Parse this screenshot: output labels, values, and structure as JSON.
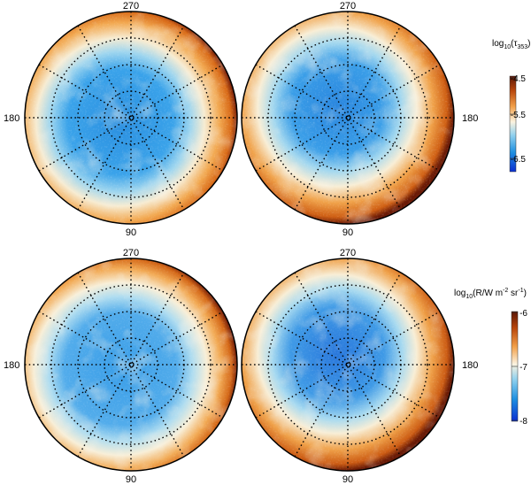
{
  "figure": {
    "top_row": {
      "left_map": {
        "top_label": "270",
        "left_label": "180",
        "bottom_label": "90"
      },
      "right_map": {
        "top_label": "270",
        "right_label": "180",
        "bottom_label": "90"
      },
      "colorbar": {
        "title_prefix": "log",
        "title_sub": "10",
        "title_quantity": "(τ",
        "title_quantity_sub": "353",
        "title_suffix": ")",
        "ticks": [
          "-4.5",
          "-5.5",
          "-6.5"
        ]
      }
    },
    "bottom_row": {
      "left_map": {
        "top_label": "270",
        "left_label": "180",
        "bottom_label": "90"
      },
      "right_map": {
        "top_label": "270",
        "right_label": "180",
        "bottom_label": "90"
      },
      "colorbar": {
        "title_prefix": "log",
        "title_sub": "10",
        "title_quantity": "(R/W m",
        "title_exp1": "-2",
        "title_mid": " sr",
        "title_exp2": "-1",
        "title_suffix": ")",
        "ticks": [
          "-6",
          "-7",
          "-8"
        ]
      }
    }
  },
  "colors": {
    "deep_blue": "#1a3fd6",
    "blue": "#1e8fe0",
    "light_blue": "#8fd0ee",
    "cream": "#f8efd8",
    "orange": "#f2a04a",
    "dark_orange": "#c85a12",
    "dark_red": "#5a1606"
  }
}
